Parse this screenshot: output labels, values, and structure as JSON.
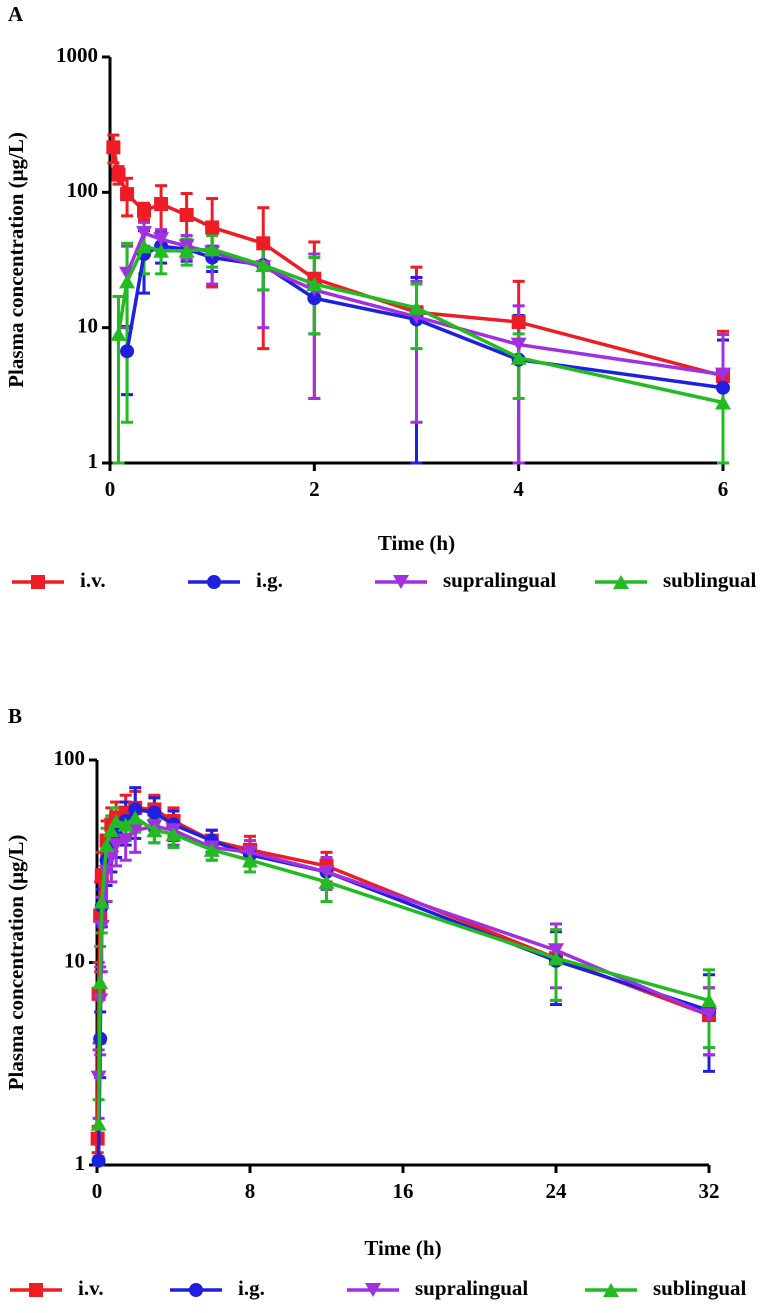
{
  "chart_data": [
    {
      "type": "line",
      "panel_label": "A",
      "ylabel": "Plasma concentration (μg/L)",
      "xlabel": "Time (h)",
      "log_y": true,
      "xlim": [
        0,
        6
      ],
      "xticks": [
        0,
        2,
        4,
        6
      ],
      "ylim": [
        1,
        1000
      ],
      "yticks": [
        1,
        10,
        100,
        1000
      ],
      "series": [
        {
          "name": "i.v.",
          "color": "#ee1c25",
          "marker": "square",
          "x": [
            0.033,
            0.083,
            0.167,
            0.333,
            0.5,
            0.75,
            1,
            1.5,
            2,
            3,
            4,
            6
          ],
          "values": [
            215,
            135,
            97,
            73,
            82,
            68,
            55,
            42,
            23,
            13,
            11,
            4.4
          ],
          "errors": [
            50,
            20,
            30,
            10,
            30,
            30,
            35,
            35,
            20,
            15,
            11,
            5
          ]
        },
        {
          "name": "i.g.",
          "color": "#1f1fe0",
          "marker": "circle",
          "x": [
            0.167,
            0.333,
            0.5,
            0.75,
            1,
            1.5,
            2,
            3,
            4,
            6
          ],
          "values": [
            6.7,
            35,
            40,
            38,
            33,
            29,
            16.5,
            11.5,
            5.8,
            3.6
          ],
          "errors": [
            3.5,
            17,
            10,
            7,
            7,
            10,
            7.5,
            12,
            6.5,
            4.5
          ]
        },
        {
          "name": "supralingual",
          "color": "#a030e0",
          "marker": "triangle-down",
          "x": [
            0.167,
            0.333,
            0.5,
            0.75,
            1,
            1.5,
            2,
            3,
            4,
            6
          ],
          "values": [
            25,
            50,
            45,
            40,
            36,
            28,
            19,
            12,
            7.5,
            4.5
          ],
          "errors": [
            15,
            10,
            8,
            8,
            15,
            18,
            16,
            10,
            7,
            4.4
          ]
        },
        {
          "name": "sublingual",
          "color": "#22bb22",
          "marker": "triangle-up",
          "x": [
            0.083,
            0.167,
            0.333,
            0.5,
            0.75,
            1,
            1.5,
            2,
            3,
            4,
            6
          ],
          "values": [
            9,
            22,
            40,
            37,
            37,
            38,
            29,
            21,
            14,
            6,
            2.8
          ],
          "errors": [
            8,
            20,
            15,
            12,
            8,
            10,
            10,
            12,
            7,
            3,
            2
          ]
        }
      ]
    },
    {
      "type": "line",
      "panel_label": "B",
      "ylabel": "Plasma concentration (μg/L)",
      "xlabel": "Time (h)",
      "log_y": true,
      "xlim": [
        0,
        32
      ],
      "xticks": [
        0,
        8,
        16,
        24,
        32
      ],
      "ylim": [
        1,
        100
      ],
      "yticks": [
        1,
        10,
        100
      ],
      "series": [
        {
          "name": "i.v.",
          "color": "#ee1c25",
          "marker": "square",
          "x": [
            0.033,
            0.083,
            0.167,
            0.25,
            0.5,
            0.75,
            1,
            1.5,
            2,
            3,
            4,
            6,
            8,
            12,
            24,
            32
          ],
          "values": [
            1.35,
            7,
            17,
            27,
            40,
            48,
            52,
            55,
            58,
            57,
            50,
            40,
            36,
            30,
            10.5,
            5.5
          ],
          "errors": [
            0.2,
            3,
            8,
            8,
            10,
            10,
            10,
            12,
            12,
            10,
            8,
            5,
            6,
            5,
            4,
            2
          ]
        },
        {
          "name": "i.g.",
          "color": "#1f1fe0",
          "marker": "circle",
          "x": [
            0.083,
            0.167,
            0.25,
            0.5,
            0.75,
            1,
            1.5,
            2,
            3,
            4,
            6,
            8,
            12,
            24,
            32
          ],
          "values": [
            1.05,
            4.2,
            19,
            32,
            38,
            43,
            50,
            57,
            55,
            48,
            40,
            34,
            28,
            10.2,
            5.8
          ],
          "errors": [
            0.3,
            1.5,
            4,
            8,
            10,
            10,
            12,
            16,
            10,
            8,
            5,
            4,
            5,
            4,
            2.9
          ]
        },
        {
          "name": "supralingual",
          "color": "#a030e0",
          "marker": "triangle-down",
          "x": [
            0.083,
            0.167,
            0.25,
            0.5,
            0.75,
            1,
            1.5,
            2,
            3,
            4,
            6,
            8,
            12,
            24,
            32
          ],
          "values": [
            2.7,
            6.5,
            15,
            28,
            33,
            38,
            40,
            45,
            47,
            45,
            37,
            35,
            28,
            11.5,
            5.5
          ],
          "errors": [
            1,
            3,
            6,
            8,
            8,
            8,
            8,
            10,
            8,
            7,
            5,
            5,
            5,
            4,
            2
          ]
        },
        {
          "name": "sublingual",
          "color": "#22bb22",
          "marker": "triangle-up",
          "x": [
            0.083,
            0.167,
            0.25,
            0.5,
            0.75,
            1,
            1.5,
            2,
            3,
            4,
            6,
            8,
            12,
            24,
            32
          ],
          "values": [
            1.6,
            8,
            20,
            38,
            45,
            50,
            48,
            52,
            45,
            43,
            36,
            32,
            25,
            10.5,
            6.5
          ],
          "errors": [
            0.5,
            4,
            6,
            8,
            8,
            8,
            8,
            8,
            6,
            6,
            4,
            4,
            5,
            4,
            2.7
          ]
        }
      ]
    }
  ]
}
